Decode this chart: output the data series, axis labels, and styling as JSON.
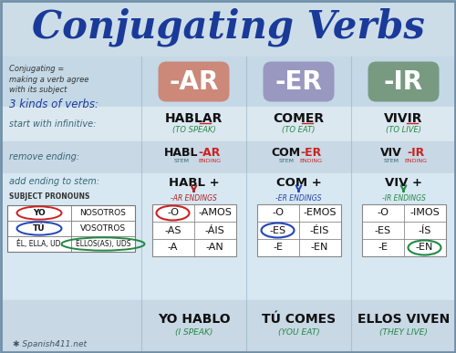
{
  "title": "Conjugating Verbs",
  "bg_color": "#b8cfe0",
  "title_color": "#1a3a9a",
  "verb_types": [
    "-AR",
    "-ER",
    "-IR"
  ],
  "verb_type_bg": [
    "#cc8878",
    "#9898c0",
    "#789a80"
  ],
  "infinitives": [
    "HABLAR",
    "COMER",
    "VIVIR"
  ],
  "infinitive_endings": [
    "AR",
    "ER",
    "IR"
  ],
  "infinitive_sub": [
    "(TO SPEAK)",
    "(TO EAT)",
    "(TO LIVE)"
  ],
  "stems": [
    "HABL",
    "COM",
    "VIV"
  ],
  "endings_label": [
    "-AR",
    "-ER",
    "-IR"
  ],
  "add_stem": [
    "HABL +",
    "COM +",
    "VIV +"
  ],
  "endings_header": [
    "-AR ENDINGS",
    "-ER ENDINGS",
    "-IR ENDINGS"
  ],
  "endings_arrow_color": [
    "#aa2222",
    "#2244aa",
    "#228844"
  ],
  "ar_endings": [
    [
      "-O",
      "-AMOS"
    ],
    [
      "-AS",
      "-ÁIS"
    ],
    [
      "-A",
      "-AN"
    ]
  ],
  "er_endings": [
    [
      "-O",
      "-EMOS"
    ],
    [
      "-ES",
      "-ÉIS"
    ],
    [
      "-E",
      "-EN"
    ]
  ],
  "ir_endings": [
    [
      "-O",
      "-IMOS"
    ],
    [
      "-ES",
      "-ÍS"
    ],
    [
      "-E",
      "-EN"
    ]
  ],
  "examples": [
    "YO HABLO",
    "TÚ COMES",
    "ELLOS VIVEN"
  ],
  "example_sub": [
    "(I SPEAK)",
    "(YOU EAT)",
    "(THEY LIVE)"
  ],
  "pronoun_rows": [
    [
      "YO",
      "NOSOTROS"
    ],
    [
      "TÚ",
      "VOSOTROS"
    ],
    [
      "ÉL, ELLA, UD.",
      "ELLOS(AS), UDS"
    ]
  ],
  "left_label1": "Conjugating =\nmaking a verb agree\nwith its subject",
  "left_label2": "3 kinds of verbs:",
  "left_label3": "start with infinitive:",
  "left_label4": "remove ending:",
  "left_label5": "add ending to stem:",
  "left_label6": "SUBJECT PRONOUNS",
  "footer": "Spanish411.net",
  "red_color": "#cc2222",
  "green_color": "#228844",
  "blue_color": "#2244bb",
  "dark_blue": "#1a3a9a",
  "teal_color": "#336677",
  "stem_color": "#336677",
  "ending_red": "#cc2222"
}
